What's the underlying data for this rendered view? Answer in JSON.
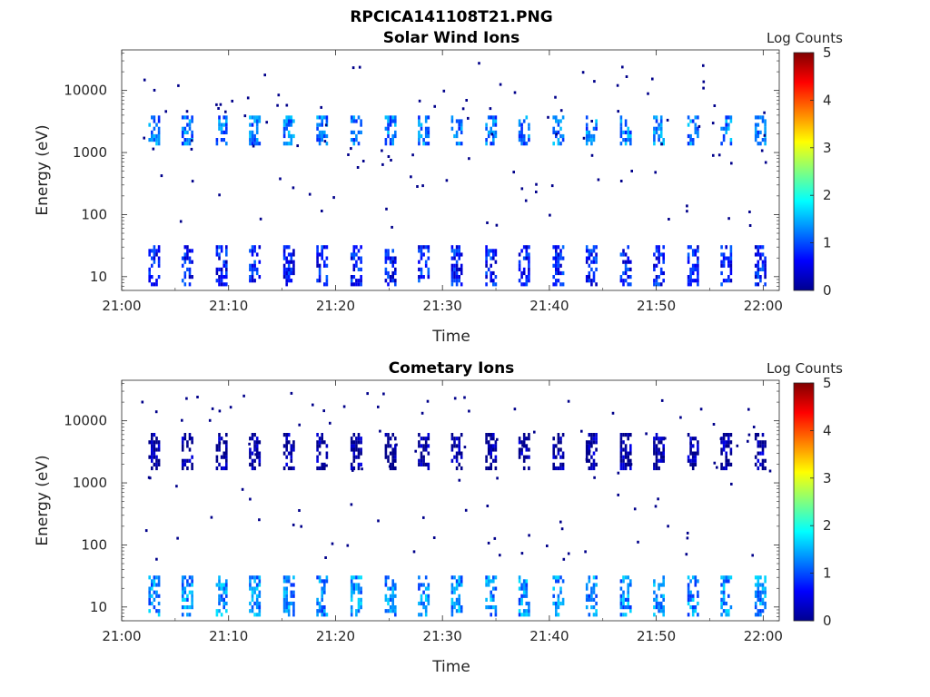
{
  "figure": {
    "title": "RPCICA141108T21.PNG"
  },
  "chart_data": [
    {
      "type": "heatmap",
      "title": "Solar Wind Ions",
      "xlabel": "Time",
      "ylabel": "Energy (eV)",
      "x_ticks": [
        "21:00",
        "21:10",
        "21:20",
        "21:30",
        "21:40",
        "21:50",
        "22:00"
      ],
      "x_range_minutes": [
        0,
        61.5
      ],
      "y_ticks": [
        "10",
        "100",
        "1000",
        "10000"
      ],
      "y_scale": "log",
      "y_range": [
        6,
        45000
      ],
      "colorbar": {
        "label": "Log Counts",
        "ticks": [
          "0",
          "1",
          "2",
          "3",
          "4",
          "5"
        ],
        "range": [
          0,
          5
        ],
        "colormap": "jet"
      },
      "scan_times_minutes": [
        2.9,
        6.0,
        9.2,
        12.3,
        15.5,
        18.6,
        21.8,
        25.0,
        28.1,
        31.2,
        34.4,
        37.5,
        40.7,
        43.8,
        47.0,
        50.1,
        53.3,
        56.4,
        59.6
      ],
      "bands": [
        {
          "e_low": 1300,
          "e_high": 3500,
          "log_counts": 1.2
        },
        {
          "e_low": 7,
          "e_high": 30,
          "log_counts": 0.7
        }
      ]
    },
    {
      "type": "heatmap",
      "title": "Cometary Ions",
      "xlabel": "Time",
      "ylabel": "Energy (eV)",
      "x_ticks": [
        "21:00",
        "21:10",
        "21:20",
        "21:30",
        "21:40",
        "21:50",
        "22:00"
      ],
      "x_range_minutes": [
        0,
        61.5
      ],
      "y_ticks": [
        "10",
        "100",
        "1000",
        "10000"
      ],
      "y_scale": "log",
      "y_range": [
        6,
        45000
      ],
      "colorbar": {
        "label": "Log Counts",
        "ticks": [
          "0",
          "1",
          "2",
          "3",
          "4",
          "5"
        ],
        "range": [
          0,
          5
        ],
        "colormap": "jet"
      },
      "scan_times_minutes": [
        2.9,
        6.0,
        9.2,
        12.3,
        15.5,
        18.6,
        21.8,
        25.0,
        28.1,
        31.2,
        34.4,
        37.5,
        40.7,
        43.8,
        47.0,
        50.1,
        53.3,
        56.4,
        59.6
      ],
      "bands": [
        {
          "e_low": 1600,
          "e_high": 6000,
          "log_counts": 0.1
        },
        {
          "e_low": 7,
          "e_high": 30,
          "log_counts": 1.3
        }
      ]
    }
  ]
}
